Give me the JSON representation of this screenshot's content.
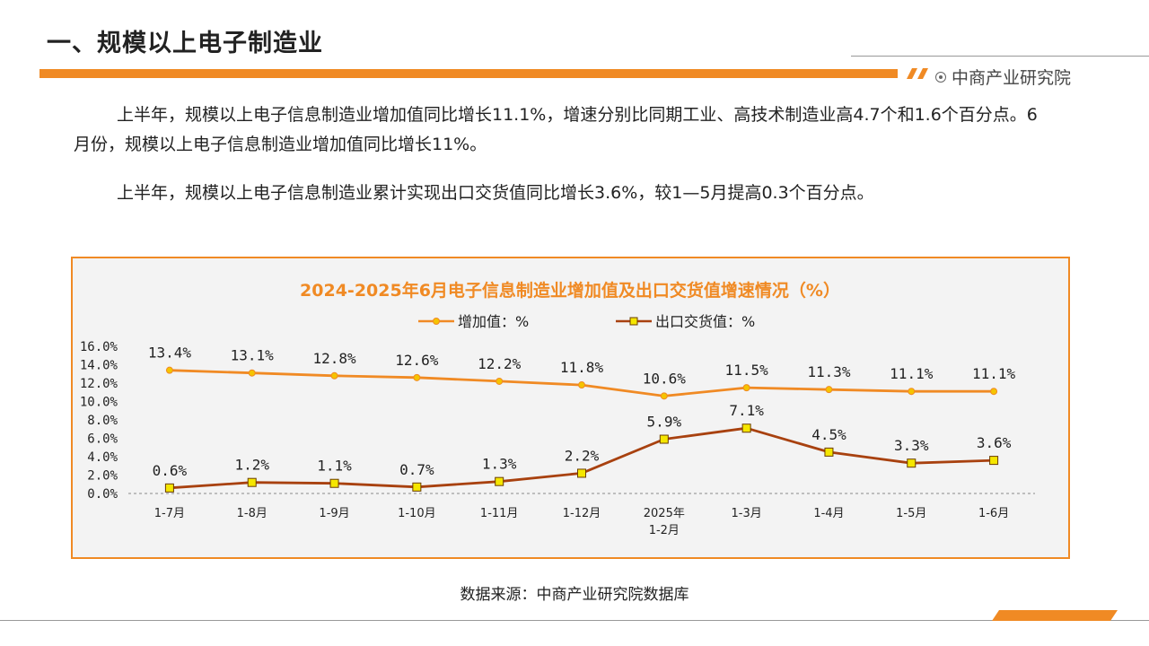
{
  "header": {
    "title": "一、规模以上电子制造业",
    "brand": "中商产业研究院"
  },
  "paragraphs": [
    "上半年，规模以上电子信息制造业增加值同比增长11.1%，增速分别比同期工业、高技术制造业高4.7个和1.6个百分点。6月份，规模以上电子信息制造业增加值同比增长11%。",
    "上半年，规模以上电子信息制造业累计实现出口交货值同比增长3.6%，较1—5月提高0.3个百分点。"
  ],
  "source": "数据来源：中商产业研究院数据库",
  "chart_data": {
    "type": "line",
    "title": "2024-2025年6月电子信息制造业增加值及出口交货值增速情况（%）",
    "categories": [
      "1-7月",
      "1-8月",
      "1-9月",
      "1-10月",
      "1-11月",
      "1-12月",
      "2025年\n1-2月",
      "1-3月",
      "1-4月",
      "1-5月",
      "1-6月"
    ],
    "series": [
      {
        "name": "增加值：%",
        "color": "#f08a24",
        "marker": "circle",
        "values": [
          13.4,
          13.1,
          12.8,
          12.6,
          12.2,
          11.8,
          10.6,
          11.5,
          11.3,
          11.1,
          11.1
        ],
        "labels": [
          "13.4%",
          "13.1%",
          "12.8%",
          "12.6%",
          "12.2%",
          "11.8%",
          "10.6%",
          "11.5%",
          "11.3%",
          "11.1%",
          "11.1%"
        ]
      },
      {
        "name": "出口交货值：%",
        "color": "#a8410f",
        "marker": "square",
        "values": [
          0.6,
          1.2,
          1.1,
          0.7,
          1.3,
          2.2,
          5.9,
          7.1,
          4.5,
          3.3,
          3.6
        ],
        "labels": [
          "0.6%",
          "1.2%",
          "1.1%",
          "0.7%",
          "1.3%",
          "2.2%",
          "5.9%",
          "7.1%",
          "4.5%",
          "3.3%",
          "3.6%"
        ]
      }
    ],
    "yticks": [
      "0.0%",
      "2.0%",
      "4.0%",
      "6.0%",
      "8.0%",
      "10.0%",
      "12.0%",
      "14.0%",
      "16.0%"
    ],
    "ylim": [
      0,
      16
    ],
    "legend": "top-center",
    "grid": false
  }
}
